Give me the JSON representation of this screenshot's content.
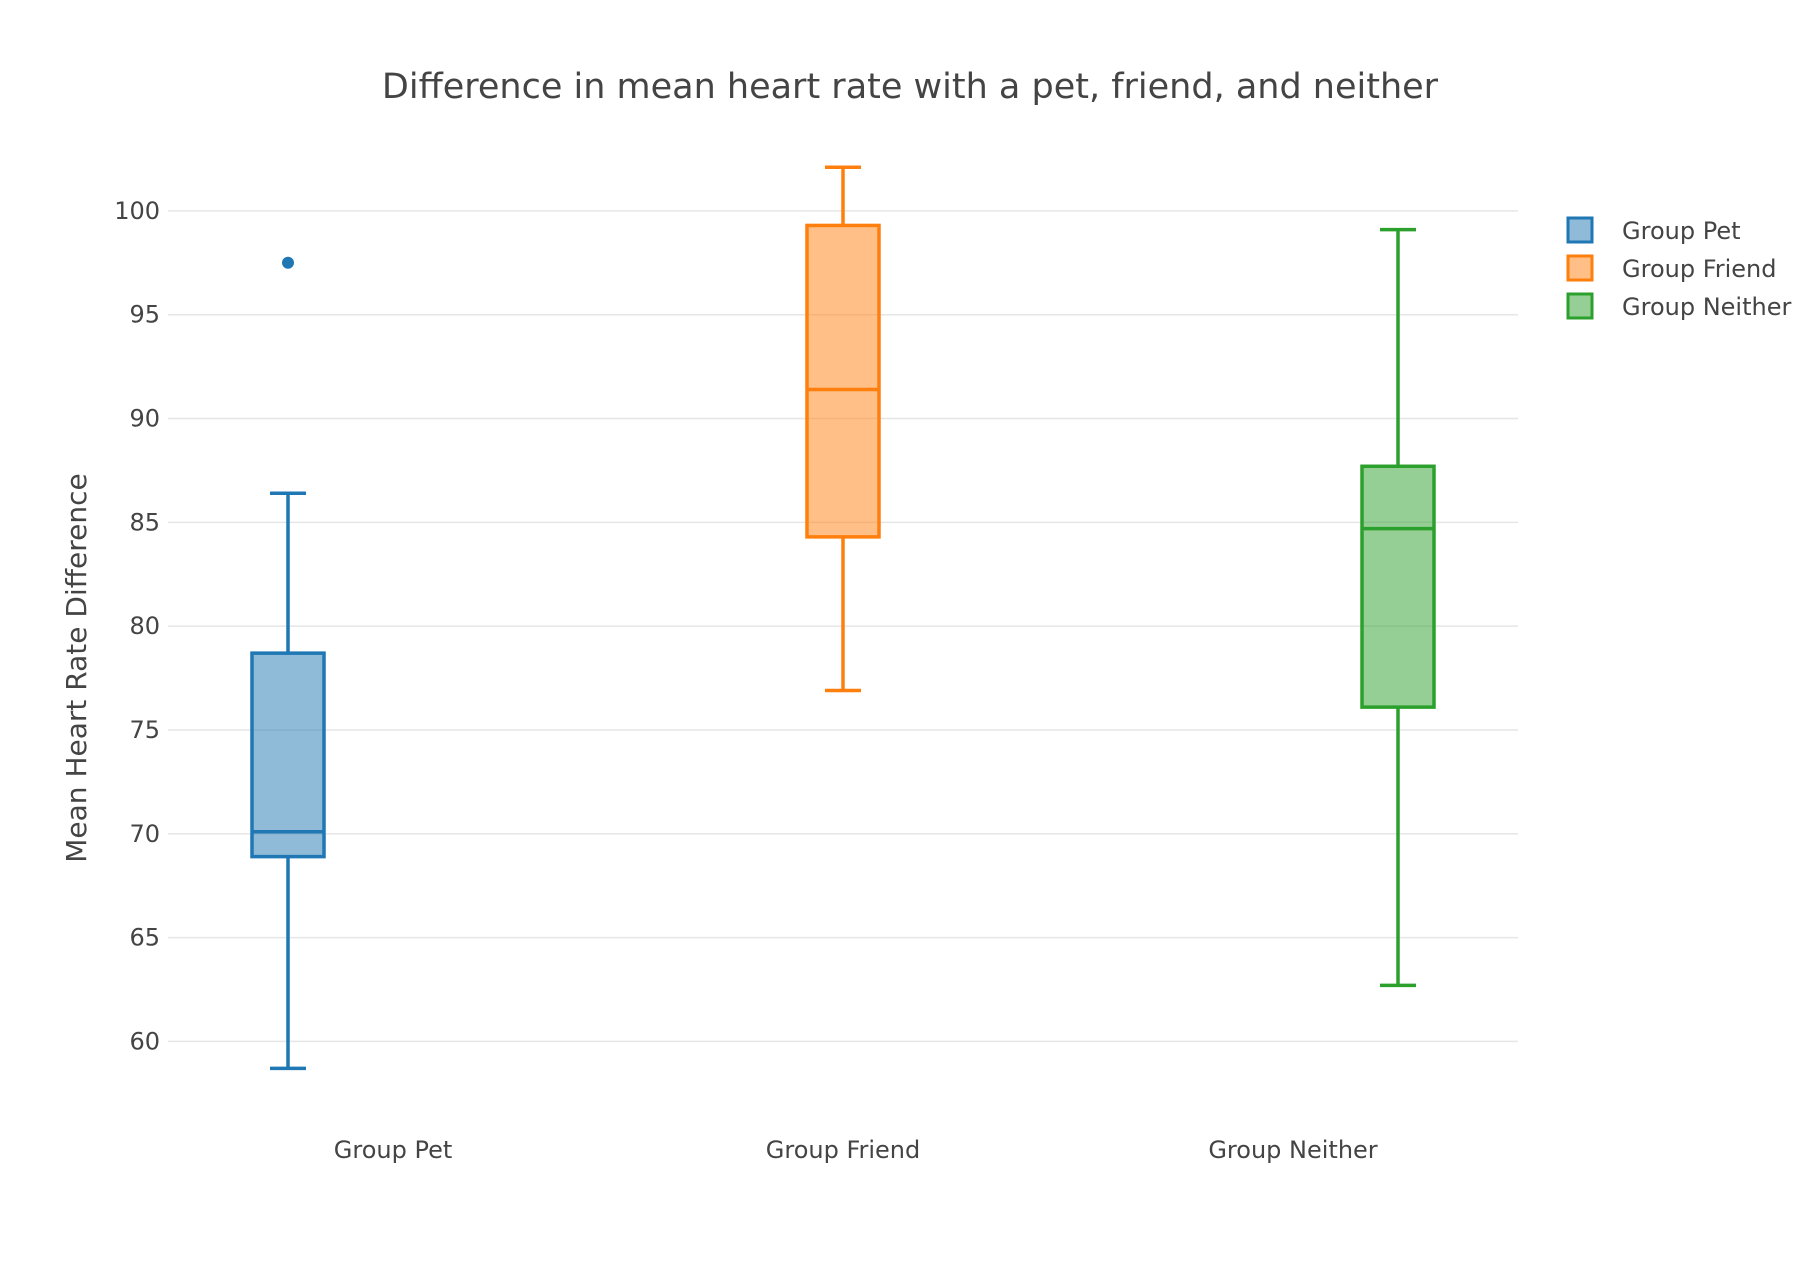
{
  "chart_data": {
    "type": "box",
    "title": "Difference in mean heart rate with a pet, friend, and neither",
    "xlabel": "",
    "ylabel": "Mean Heart Rate Difference",
    "ylim": [
      56.6,
      103.8
    ],
    "yticks": [
      60,
      65,
      70,
      75,
      80,
      85,
      90,
      95,
      100
    ],
    "grid": true,
    "legend_position": "top-right",
    "categories": [
      "Group Pet",
      "Group Friend",
      "Group Neither"
    ],
    "series": [
      {
        "name": "Group Pet",
        "color": "#1f77b4",
        "fill": "rgba(31,119,180,0.5)",
        "lower_whisker": 58.7,
        "q1": 68.9,
        "median": 70.1,
        "q3": 78.7,
        "upper_whisker": 86.4,
        "outliers": [
          97.5
        ]
      },
      {
        "name": "Group Friend",
        "color": "#ff7f0e",
        "fill": "rgba(255,127,14,0.5)",
        "lower_whisker": 76.9,
        "q1": 84.3,
        "median": 91.4,
        "q3": 99.3,
        "upper_whisker": 102.1,
        "outliers": []
      },
      {
        "name": "Group Neither",
        "color": "#2ca02c",
        "fill": "rgba(44,160,44,0.5)",
        "lower_whisker": 62.7,
        "q1": 76.1,
        "median": 84.7,
        "q3": 87.7,
        "upper_whisker": 99.1,
        "outliers": []
      }
    ]
  }
}
